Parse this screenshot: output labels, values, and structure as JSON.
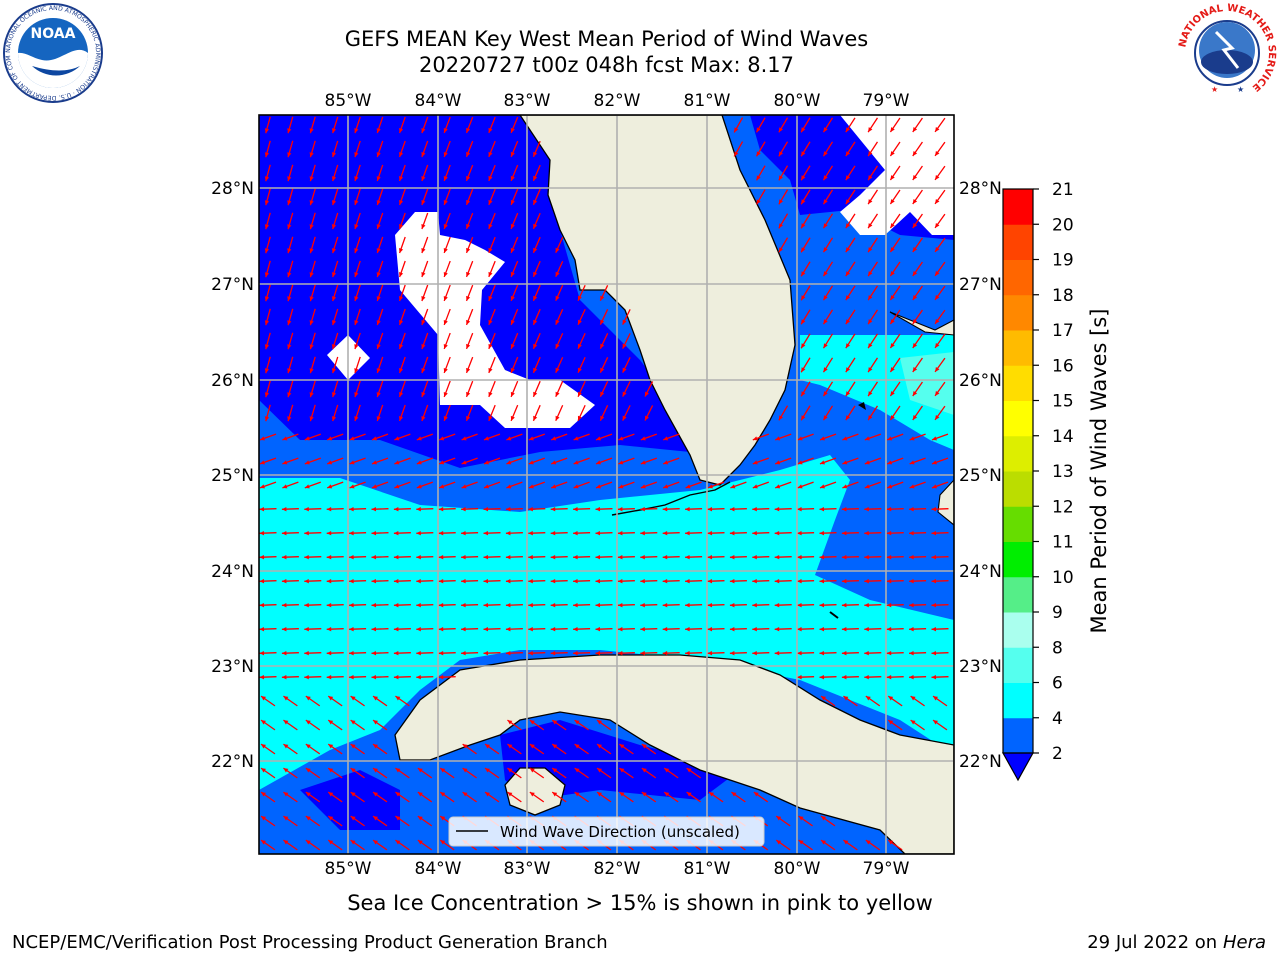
{
  "title": {
    "line1": "GEFS MEAN Key West Mean Period of Wind Waves",
    "line2": "20220727 t00z 048h fcst   Max: 8.17"
  },
  "logos": {
    "left": {
      "text": "NOAA",
      "ring_text": "NATIONAL OCEANIC AND ATMOSPHERIC ADMINISTRATION · U.S. DEPARTMENT OF COMMERCE"
    },
    "right": {
      "ring_text": "NATIONAL WEATHER SERVICE"
    }
  },
  "map": {
    "lon_ticks": [
      "85°W",
      "84°W",
      "83°W",
      "82°W",
      "81°W",
      "80°W",
      "79°W"
    ],
    "lat_ticks": [
      "28°N",
      "27°N",
      "26°N",
      "25°N",
      "24°N",
      "23°N",
      "22°N"
    ],
    "legend_label": "Wind Wave Direction (unscaled)",
    "colors": {
      "band_2_4": "#0064ff",
      "band_4_6": "#00ffff",
      "band_below_2": "#0000ff",
      "land": "#eeeedd",
      "no_data": "#ffffff",
      "arrow": "#ff0000",
      "grid": "#b0b0b0"
    }
  },
  "colorbar": {
    "label": "Mean Period of Wind Waves [s]",
    "ticks": [
      "2",
      "4",
      "6",
      "8",
      "9",
      "10",
      "11",
      "12",
      "13",
      "14",
      "15",
      "16",
      "17",
      "18",
      "19",
      "20",
      "21"
    ],
    "bands": [
      {
        "from": "2",
        "to": "4",
        "color": "#0064ff"
      },
      {
        "from": "4",
        "to": "6",
        "color": "#00ffff"
      },
      {
        "from": "6",
        "to": "8",
        "color": "#55ffee"
      },
      {
        "from": "8",
        "to": "9",
        "color": "#aaffee"
      },
      {
        "from": "9",
        "to": "10",
        "color": "#55ee88"
      },
      {
        "from": "10",
        "to": "11",
        "color": "#00ee00"
      },
      {
        "from": "11",
        "to": "12",
        "color": "#66dd00"
      },
      {
        "from": "12",
        "to": "13",
        "color": "#bbdd00"
      },
      {
        "from": "13",
        "to": "14",
        "color": "#ddee00"
      },
      {
        "from": "14",
        "to": "15",
        "color": "#ffff00"
      },
      {
        "from": "15",
        "to": "16",
        "color": "#ffdd00"
      },
      {
        "from": "16",
        "to": "17",
        "color": "#ffbb00"
      },
      {
        "from": "17",
        "to": "18",
        "color": "#ff8800"
      },
      {
        "from": "18",
        "to": "19",
        "color": "#ff6600"
      },
      {
        "from": "19",
        "to": "20",
        "color": "#ff4400"
      },
      {
        "from": "20",
        "to": "21",
        "color": "#ff0000"
      }
    ],
    "under_color": "#0000ff"
  },
  "footer": {
    "note": "Sea Ice Concentration > 15% is shown in pink to yellow",
    "left": "NCEP/EMC/Verification Post Processing Product Generation Branch",
    "right_date": "29 Jul 2022 on ",
    "right_host": "Hera"
  }
}
